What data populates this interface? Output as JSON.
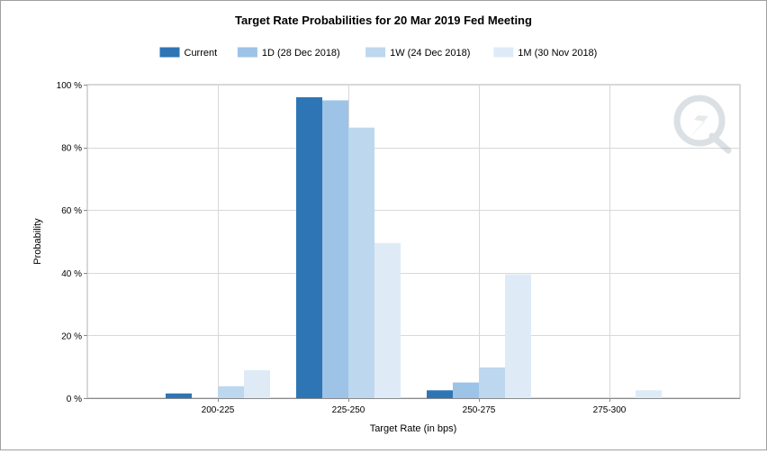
{
  "chart_data": {
    "type": "bar",
    "title": "Target Rate Probabilities for 20 Mar 2019 Fed Meeting",
    "xlabel": "Target Rate (in bps)",
    "ylabel": "Probability",
    "categories": [
      "200-225",
      "225-250",
      "250-275",
      "275-300"
    ],
    "y_ticks": [
      "0 %",
      "20 %",
      "40 %",
      "60 %",
      "80 %",
      "100 %"
    ],
    "ylim": [
      0,
      100
    ],
    "grid": true,
    "legend_position": "top",
    "series": [
      {
        "name": "Current",
        "color": "#2e75b6",
        "values": [
          1.5,
          96.0,
          2.5,
          0
        ]
      },
      {
        "name": "1D (28 Dec 2018)",
        "color": "#9dc3e6",
        "values": [
          0,
          95.0,
          5.0,
          0
        ]
      },
      {
        "name": "1W (24 Dec 2018)",
        "color": "#bdd7ee",
        "values": [
          3.8,
          86.3,
          9.8,
          0
        ]
      },
      {
        "name": "1M (30 Nov 2018)",
        "color": "#deebf7",
        "values": [
          8.9,
          49.5,
          39.5,
          2.5
        ]
      }
    ]
  },
  "watermark": {
    "icon": "q-logo-icon"
  }
}
